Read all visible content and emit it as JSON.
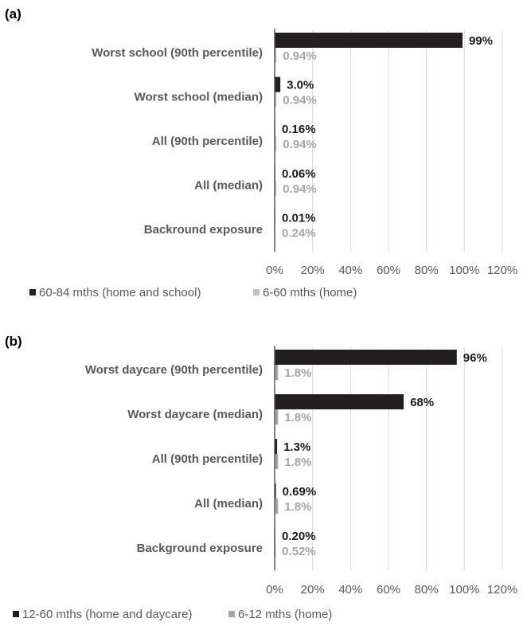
{
  "chart_data": [
    {
      "type": "bar",
      "orientation": "horizontal",
      "panel_label": "(a)",
      "categories": [
        "Worst school (90th percentile)",
        "Worst school (median)",
        "All (90th percentile)",
        "All (median)",
        "Backround exposure"
      ],
      "series": [
        {
          "name": "60-84 mths (home and school)",
          "values": [
            99,
            3.0,
            0.16,
            0.06,
            0.01
          ],
          "labels": [
            "99%",
            "3.0%",
            "0.16%",
            "0.06%",
            "0.01%"
          ],
          "color": "#231f20",
          "label_color": "#1a1a1a"
        },
        {
          "name": "6-60 mths (home)",
          "values": [
            0.94,
            0.94,
            0.94,
            0.94,
            0.24
          ],
          "labels": [
            "0.94%",
            "0.94%",
            "0.94%",
            "0.94%",
            "0.24%"
          ],
          "color": "#bfbfbf",
          "label_color": "#a6a6a6"
        }
      ],
      "x_ticks": [
        "0%",
        "20%",
        "40%",
        "60%",
        "80%",
        "100%",
        "120%"
      ],
      "xlim": [
        0,
        120
      ],
      "grid": true,
      "legend_position": "bottom"
    },
    {
      "type": "bar",
      "orientation": "horizontal",
      "panel_label": "(b)",
      "categories": [
        "Worst daycare (90th percentile)",
        "Worst daycare (median)",
        "All (90th percentile)",
        "All (median)",
        "Background exposure"
      ],
      "series": [
        {
          "name": "12-60 mths (home and daycare)",
          "values": [
            96,
            68,
            1.3,
            0.69,
            0.2
          ],
          "labels": [
            "96%",
            "68%",
            "1.3%",
            "0.69%",
            "0.20%"
          ],
          "color": "#231f20",
          "label_color": "#1a1a1a"
        },
        {
          "name": "6-12 mths (home)",
          "values": [
            1.8,
            1.8,
            1.8,
            1.8,
            0.52
          ],
          "labels": [
            "1.8%",
            "1.8%",
            "1.8%",
            "1.8%",
            "0.52%"
          ],
          "color": "#a6a6a6",
          "label_color": "#a6a6a6"
        }
      ],
      "x_ticks": [
        "0%",
        "20%",
        "40%",
        "60%",
        "80%",
        "100%",
        "120%"
      ],
      "xlim": [
        0,
        120
      ],
      "grid": true,
      "legend_position": "bottom"
    }
  ]
}
